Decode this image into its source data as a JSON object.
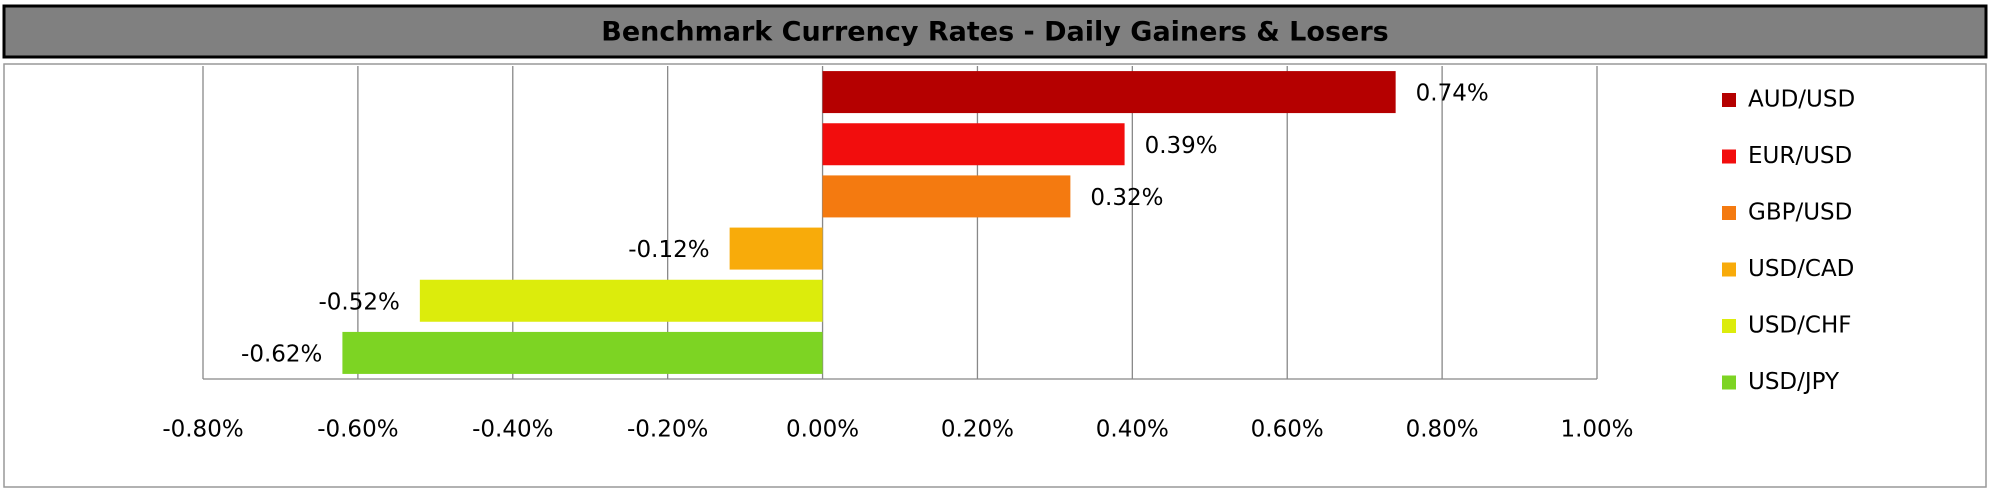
{
  "chart_data": {
    "type": "hbar",
    "title": "Benchmark Currency Rates - Daily Gainers & Losers",
    "series": [
      {
        "name": "AUD/USD",
        "color": "#b50000",
        "values": [
          0.74
        ],
        "value_labels": [
          "0.74%"
        ]
      },
      {
        "name": "EUR/USD",
        "color": "#f20d0d",
        "values": [
          0.39
        ],
        "value_labels": [
          "0.39%"
        ]
      },
      {
        "name": "GBP/USD",
        "color": "#f47a10",
        "values": [
          0.32
        ],
        "value_labels": [
          "0.32%"
        ]
      },
      {
        "name": "USD/CAD",
        "color": "#f8ab0a",
        "values": [
          -0.12
        ],
        "value_labels": [
          "-0.12%"
        ]
      },
      {
        "name": "USD/CHF",
        "color": "#dcec0c",
        "values": [
          -0.52
        ],
        "value_labels": [
          "-0.52%"
        ]
      },
      {
        "name": "USD/JPY",
        "color": "#7dd423",
        "values": [
          -0.62
        ],
        "value_labels": [
          "-0.62%"
        ]
      }
    ],
    "xlim": [
      -0.8,
      1.0
    ],
    "xticks": [
      {
        "value": -0.8,
        "label": "-0.80%"
      },
      {
        "value": -0.6,
        "label": "-0.60%"
      },
      {
        "value": -0.4,
        "label": "-0.40%"
      },
      {
        "value": -0.2,
        "label": "-0.20%"
      },
      {
        "value": 0,
        "label": "0.00%"
      },
      {
        "value": 0.2,
        "label": "0.20%"
      },
      {
        "value": 0.4,
        "label": "0.40%"
      },
      {
        "value": 0.6,
        "label": "0.60%"
      },
      {
        "value": 0.8,
        "label": "0.80%"
      },
      {
        "value": 1.0,
        "label": "1.00%"
      }
    ],
    "grid": true,
    "legend": "right"
  }
}
